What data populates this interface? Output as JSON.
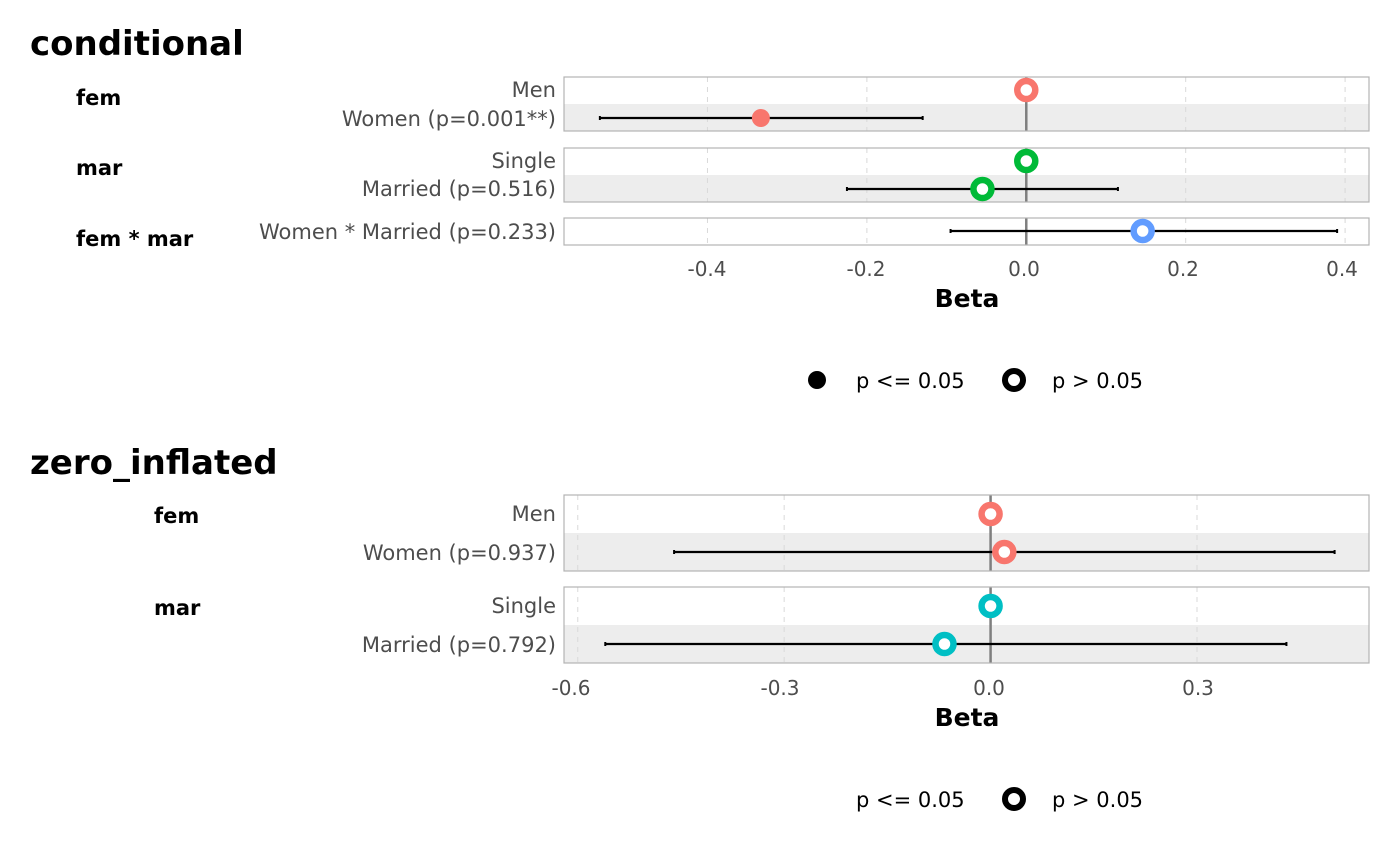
{
  "chart_data": [
    {
      "type": "forest",
      "title": "conditional",
      "xlabel": "Beta",
      "xlim": [
        -0.58,
        0.43
      ],
      "ticks": [
        -0.4,
        -0.2,
        0.0,
        0.2,
        0.4
      ],
      "tick_labels": [
        "-0.4",
        "-0.2",
        "0.0",
        "0.2",
        "0.4"
      ],
      "reference_line": 0,
      "groups": [
        {
          "name": "fem",
          "rows": [
            {
              "label": "Men",
              "estimate": 0.0,
              "significant": false,
              "color": "#F8766D"
            },
            {
              "label": "Women (p=0.001**)",
              "estimate": -0.333,
              "ci": [
                -0.535,
                -0.13
              ],
              "significant": true,
              "color": "#F8766D"
            }
          ]
        },
        {
          "name": "mar",
          "rows": [
            {
              "label": "Single",
              "estimate": 0.0,
              "significant": false,
              "color": "#00BA38"
            },
            {
              "label": "Married (p=0.516)",
              "estimate": -0.055,
              "ci": [
                -0.225,
                0.115
              ],
              "significant": false,
              "color": "#00BA38"
            }
          ]
        },
        {
          "name": "fem * mar",
          "rows": [
            {
              "label": "Women * Married (p=0.233)",
              "estimate": 0.146,
              "ci": [
                -0.095,
                0.39
              ],
              "significant": false,
              "color": "#619CFF"
            }
          ]
        }
      ],
      "legend": {
        "position": "bottom",
        "items": [
          {
            "label": "p <= 0.05",
            "shape": "filled"
          },
          {
            "label": "p > 0.05",
            "shape": "ring"
          }
        ]
      }
    },
    {
      "type": "forest",
      "title": "zero_inflated",
      "xlabel": "Beta",
      "xlim": [
        -0.62,
        0.55
      ],
      "ticks": [
        -0.6,
        -0.3,
        0.0,
        0.3
      ],
      "tick_labels": [
        "-0.6",
        "-0.3",
        "0.0",
        "0.3"
      ],
      "reference_line": 0,
      "groups": [
        {
          "name": "fem",
          "rows": [
            {
              "label": "Men",
              "estimate": 0.0,
              "significant": false,
              "color": "#F8766D"
            },
            {
              "label": "Women (p=0.937)",
              "estimate": 0.02,
              "ci": [
                -0.46,
                0.5
              ],
              "significant": false,
              "color": "#F8766D"
            }
          ]
        },
        {
          "name": "mar",
          "rows": [
            {
              "label": "Single",
              "estimate": 0.0,
              "significant": false,
              "color": "#00BFC4"
            },
            {
              "label": "Married (p=0.792)",
              "estimate": -0.067,
              "ci": [
                -0.56,
                0.43
              ],
              "significant": false,
              "color": "#00BFC4"
            }
          ]
        }
      ],
      "legend": {
        "position": "bottom",
        "items": [
          {
            "label": "p <= 0.05",
            "shape": "none"
          },
          {
            "label": "p > 0.05",
            "shape": "ring"
          }
        ]
      }
    }
  ]
}
